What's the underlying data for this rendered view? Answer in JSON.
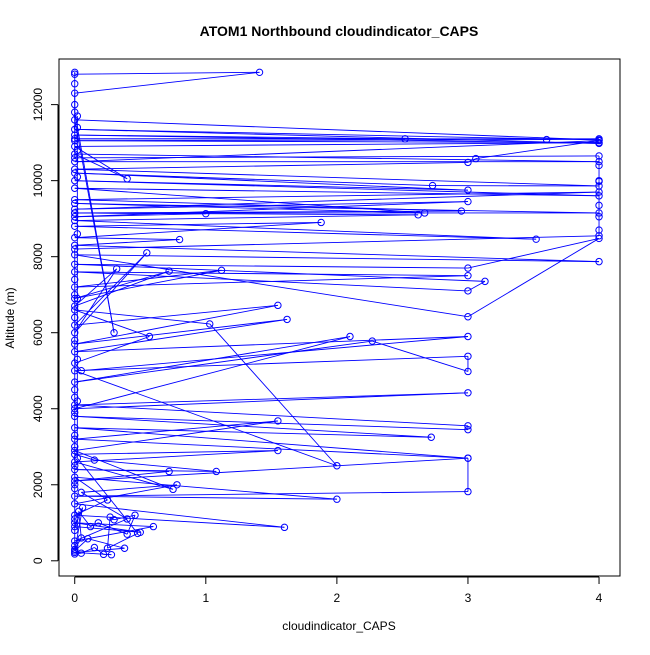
{
  "chart_data": {
    "type": "scatter",
    "title": "ATOM1 Northbound cloudindicator_CAPS",
    "xlabel": "cloudindicator_CAPS",
    "ylabel": "Altitude (m)",
    "xlim": [
      -0.12,
      4.16
    ],
    "ylim": [
      -400,
      13200
    ],
    "x_ticks": [
      0,
      1,
      2,
      3,
      4
    ],
    "x_tick_labels": [
      "0",
      "1",
      "2",
      "3",
      "4"
    ],
    "y_ticks": [
      0,
      2000,
      4000,
      6000,
      8000,
      10000,
      12000
    ],
    "y_tick_labels": [
      "0",
      "2000",
      "4000",
      "6000",
      "8000",
      "10000",
      "12000"
    ],
    "grid": false,
    "legend": "none",
    "marker": "open-circle",
    "connected": true,
    "series_color": "#0000ff",
    "series": [
      {
        "points": [
          [
            0,
            180
          ],
          [
            0.05,
            200
          ],
          [
            0.15,
            350
          ],
          [
            0.22,
            170
          ],
          [
            0.28,
            160
          ],
          [
            0,
            220
          ],
          [
            0.38,
            330
          ],
          [
            0.1,
            580
          ],
          [
            0,
            260
          ],
          [
            0.06,
            1400
          ],
          [
            0,
            900
          ],
          [
            0.5,
            750
          ],
          [
            0,
            1000
          ],
          [
            0.6,
            900
          ],
          [
            0,
            520
          ],
          [
            0.4,
            1100
          ],
          [
            0.05,
            1800
          ],
          [
            0.78,
            2000
          ],
          [
            0,
            1500
          ],
          [
            1.6,
            880
          ],
          [
            0,
            1200
          ],
          [
            0.25,
            1600
          ],
          [
            0,
            2200
          ],
          [
            2.0,
            1620
          ],
          [
            0,
            1700
          ],
          [
            3.0,
            1820
          ],
          [
            3.0,
            2700
          ],
          [
            0,
            2100
          ],
          [
            0.72,
            2350
          ],
          [
            0,
            2400
          ],
          [
            1.08,
            2350
          ],
          [
            0.15,
            2650
          ],
          [
            0,
            2800
          ],
          [
            1.55,
            2900
          ],
          [
            0,
            2600
          ],
          [
            0.75,
            1880
          ],
          [
            0,
            2900
          ],
          [
            1.55,
            3680
          ],
          [
            0,
            3200
          ],
          [
            3.0,
            2700
          ],
          [
            0,
            3500
          ],
          [
            2.72,
            3250
          ],
          [
            0,
            3800
          ],
          [
            3.0,
            3450
          ],
          [
            3.0,
            3550
          ],
          [
            0,
            4100
          ],
          [
            3.0,
            4420
          ],
          [
            0,
            4000
          ],
          [
            2.1,
            5900
          ],
          [
            0,
            4700
          ],
          [
            2.27,
            5780
          ],
          [
            3.0,
            4980
          ],
          [
            3.0,
            5380
          ],
          [
            0,
            5000
          ],
          [
            2.0,
            2500
          ],
          [
            1.03,
            6230
          ],
          [
            0,
            6600
          ],
          [
            0.57,
            5900
          ],
          [
            0,
            5200
          ],
          [
            0.05,
            5000
          ],
          [
            3.0,
            5900
          ],
          [
            0,
            5500
          ],
          [
            1.62,
            6350
          ],
          [
            0,
            5700
          ],
          [
            1.55,
            6720
          ],
          [
            0,
            6200
          ],
          [
            0.55,
            8100
          ],
          [
            0,
            6000
          ],
          [
            0.32,
            7680
          ],
          [
            0,
            6700
          ],
          [
            0.72,
            7620
          ],
          [
            0,
            6900
          ],
          [
            1.12,
            7640
          ],
          [
            0,
            7200
          ],
          [
            3.0,
            7500
          ],
          [
            0,
            7600
          ],
          [
            3.0,
            7100
          ],
          [
            3.13,
            7350
          ],
          [
            0,
            7800
          ],
          [
            3.0,
            7700
          ],
          [
            4.0,
            8480
          ],
          [
            3.0,
            6420
          ],
          [
            0,
            8050
          ],
          [
            4.0,
            7870
          ],
          [
            0,
            8300
          ],
          [
            0.8,
            8450
          ],
          [
            0,
            8500
          ],
          [
            1.88,
            8900
          ],
          [
            0,
            8800
          ],
          [
            3.52,
            8460
          ],
          [
            0,
            8950
          ],
          [
            2.62,
            9100
          ],
          [
            0,
            9150
          ],
          [
            1.0,
            9130
          ],
          [
            0,
            9050
          ],
          [
            3.0,
            9450
          ],
          [
            0,
            9250
          ],
          [
            4.0,
            9700
          ],
          [
            0,
            9500
          ],
          [
            2.95,
            9200
          ],
          [
            0,
            9150
          ],
          [
            4.0,
            9150
          ],
          [
            0,
            9400
          ],
          [
            2.67,
            9150
          ],
          [
            0,
            9800
          ],
          [
            4.0,
            9600
          ],
          [
            0,
            10000
          ],
          [
            3.0,
            9750
          ],
          [
            0,
            10200
          ],
          [
            2.73,
            9870
          ],
          [
            4.0,
            9860
          ],
          [
            0,
            10300
          ],
          [
            3.0,
            10480
          ],
          [
            3.06,
            10580
          ],
          [
            4.0,
            11050
          ],
          [
            0,
            10500
          ],
          [
            4.0,
            10500
          ],
          [
            0,
            10700
          ],
          [
            0.4,
            10050
          ],
          [
            0,
            10900
          ],
          [
            4.0,
            11000
          ],
          [
            0,
            11050
          ],
          [
            3.6,
            11080
          ],
          [
            4.0,
            11100
          ],
          [
            0,
            11100
          ],
          [
            2.52,
            11100
          ],
          [
            0,
            11200
          ],
          [
            4.0,
            10980
          ],
          [
            0,
            11350
          ],
          [
            4.0,
            11070
          ],
          [
            0,
            11600
          ],
          [
            0.3,
            6000
          ],
          [
            0,
            11800
          ],
          [
            0,
            12000
          ],
          [
            0,
            12300
          ],
          [
            1.41,
            12850
          ],
          [
            0,
            12800
          ],
          [
            0,
            12850
          ],
          [
            0,
            12550
          ],
          [
            0,
            10600
          ],
          [
            4.0,
            10650
          ],
          [
            4.0,
            10400
          ],
          [
            4.0,
            10000
          ],
          [
            4.0,
            9980
          ],
          [
            4.0,
            9350
          ],
          [
            4.0,
            9050
          ],
          [
            4.0,
            8700
          ],
          [
            4.0,
            8550
          ],
          [
            0,
            8200
          ],
          [
            0,
            7400
          ],
          [
            0,
            7000
          ],
          [
            0,
            6400
          ],
          [
            0,
            5800
          ],
          [
            0,
            4500
          ],
          [
            0,
            4300
          ],
          [
            0,
            3900
          ],
          [
            0,
            3300
          ],
          [
            0,
            3000
          ],
          [
            0,
            2500
          ],
          [
            0,
            2000
          ],
          [
            0,
            1900
          ],
          [
            0,
            1100
          ],
          [
            0,
            800
          ],
          [
            0,
            400
          ],
          [
            0,
            300
          ],
          [
            0.05,
            600
          ],
          [
            0.03,
            1300
          ],
          [
            0.12,
            900
          ],
          [
            0.18,
            1000
          ],
          [
            0.4,
            700
          ],
          [
            0.46,
            1200
          ],
          [
            0.3,
            1080
          ],
          [
            0.27,
            1150
          ],
          [
            0.25,
            330
          ],
          [
            0.48,
            720
          ],
          [
            0.02,
            2700
          ],
          [
            0.02,
            4200
          ],
          [
            0.02,
            5300
          ],
          [
            0.02,
            6900
          ],
          [
            0.02,
            8600
          ],
          [
            0.02,
            10100
          ],
          [
            0.02,
            10800
          ],
          [
            0.02,
            11400
          ],
          [
            0.02,
            11700
          ]
        ]
      }
    ]
  }
}
